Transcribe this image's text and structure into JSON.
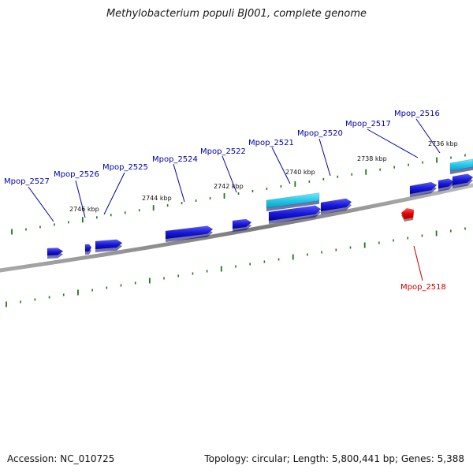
{
  "title": "Methylobacterium populi BJ001, complete genome",
  "accession": "Accession: NC_010725",
  "summary": "Topology: circular; Length: 5,800,441 bp; Genes: 5,388",
  "colors": {
    "gene_forward": "#1a1adc",
    "gene_reverse": "#e80000",
    "rna": "#22c8e8",
    "backbone": "#8a8a8a",
    "tick": "#1a7a1a",
    "label_forward": "#0000aa",
    "label_reverse": "#cc0000"
  },
  "kbp_labels": [
    "2746 kbp",
    "2744 kbp",
    "2742 kbp",
    "2740 kbp",
    "2738 kbp",
    "2736 kbp"
  ],
  "gene_labels": [
    {
      "name": "Mpop_2527",
      "strand": "forward"
    },
    {
      "name": "Mpop_2526",
      "strand": "forward"
    },
    {
      "name": "Mpop_2525",
      "strand": "forward"
    },
    {
      "name": "Mpop_2524",
      "strand": "forward"
    },
    {
      "name": "Mpop_2522",
      "strand": "forward"
    },
    {
      "name": "Mpop_2521",
      "strand": "forward"
    },
    {
      "name": "Mpop_2520",
      "strand": "forward"
    },
    {
      "name": "Mpop_2517",
      "strand": "forward"
    },
    {
      "name": "Mpop_2516",
      "strand": "forward"
    },
    {
      "name": "Mpop_2518",
      "strand": "reverse"
    }
  ]
}
